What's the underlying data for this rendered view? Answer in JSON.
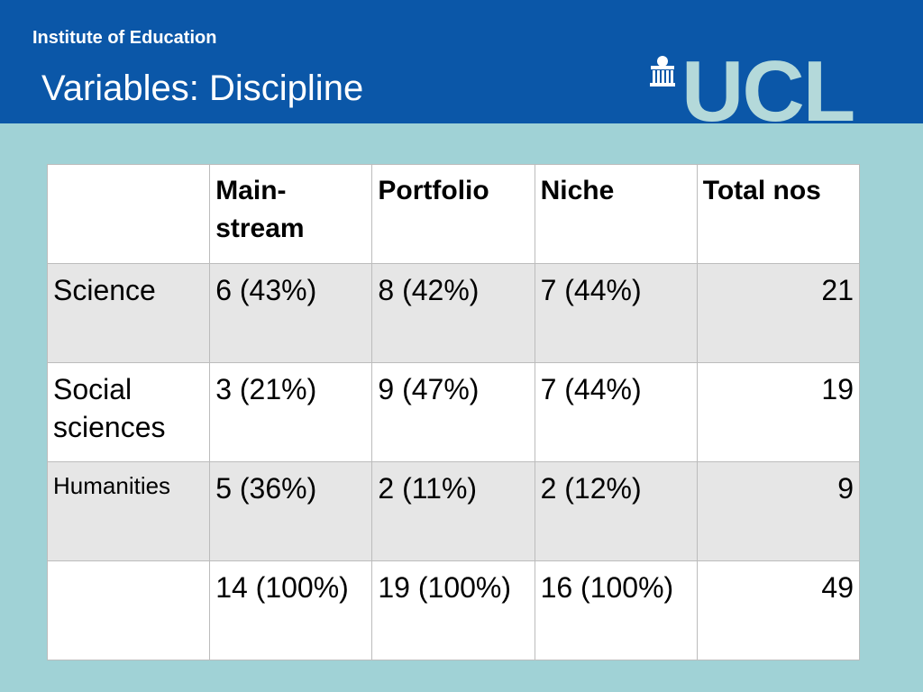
{
  "header": {
    "institute": "Institute of Education",
    "title": "Variables: Discipline",
    "logo_text": "UCL"
  },
  "table": {
    "columns": [
      "",
      "Main-stream",
      "Portfolio",
      "Niche",
      "Total nos"
    ],
    "rows": [
      {
        "label": "Science",
        "mainstream": "6 (43%)",
        "portfolio": "8 (42%)",
        "niche": "7 (44%)",
        "total": "21"
      },
      {
        "label": "Social sciences",
        "mainstream": "3 (21%)",
        "portfolio": "9 (47%)",
        "niche": "7 (44%)",
        "total": "19"
      },
      {
        "label": "Humanities",
        "mainstream": "5 (36%)",
        "portfolio": "2 (11%)",
        "niche": "2 (12%)",
        "total": "9"
      },
      {
        "label": "",
        "mainstream": "14 (100%)",
        "portfolio": "19 (100%)",
        "niche": "16 (100%)",
        "total": "49"
      }
    ]
  },
  "colors": {
    "header_bg": "#0b57a8",
    "slide_bg": "#a0d2d6",
    "logo": "#b4d9da"
  }
}
